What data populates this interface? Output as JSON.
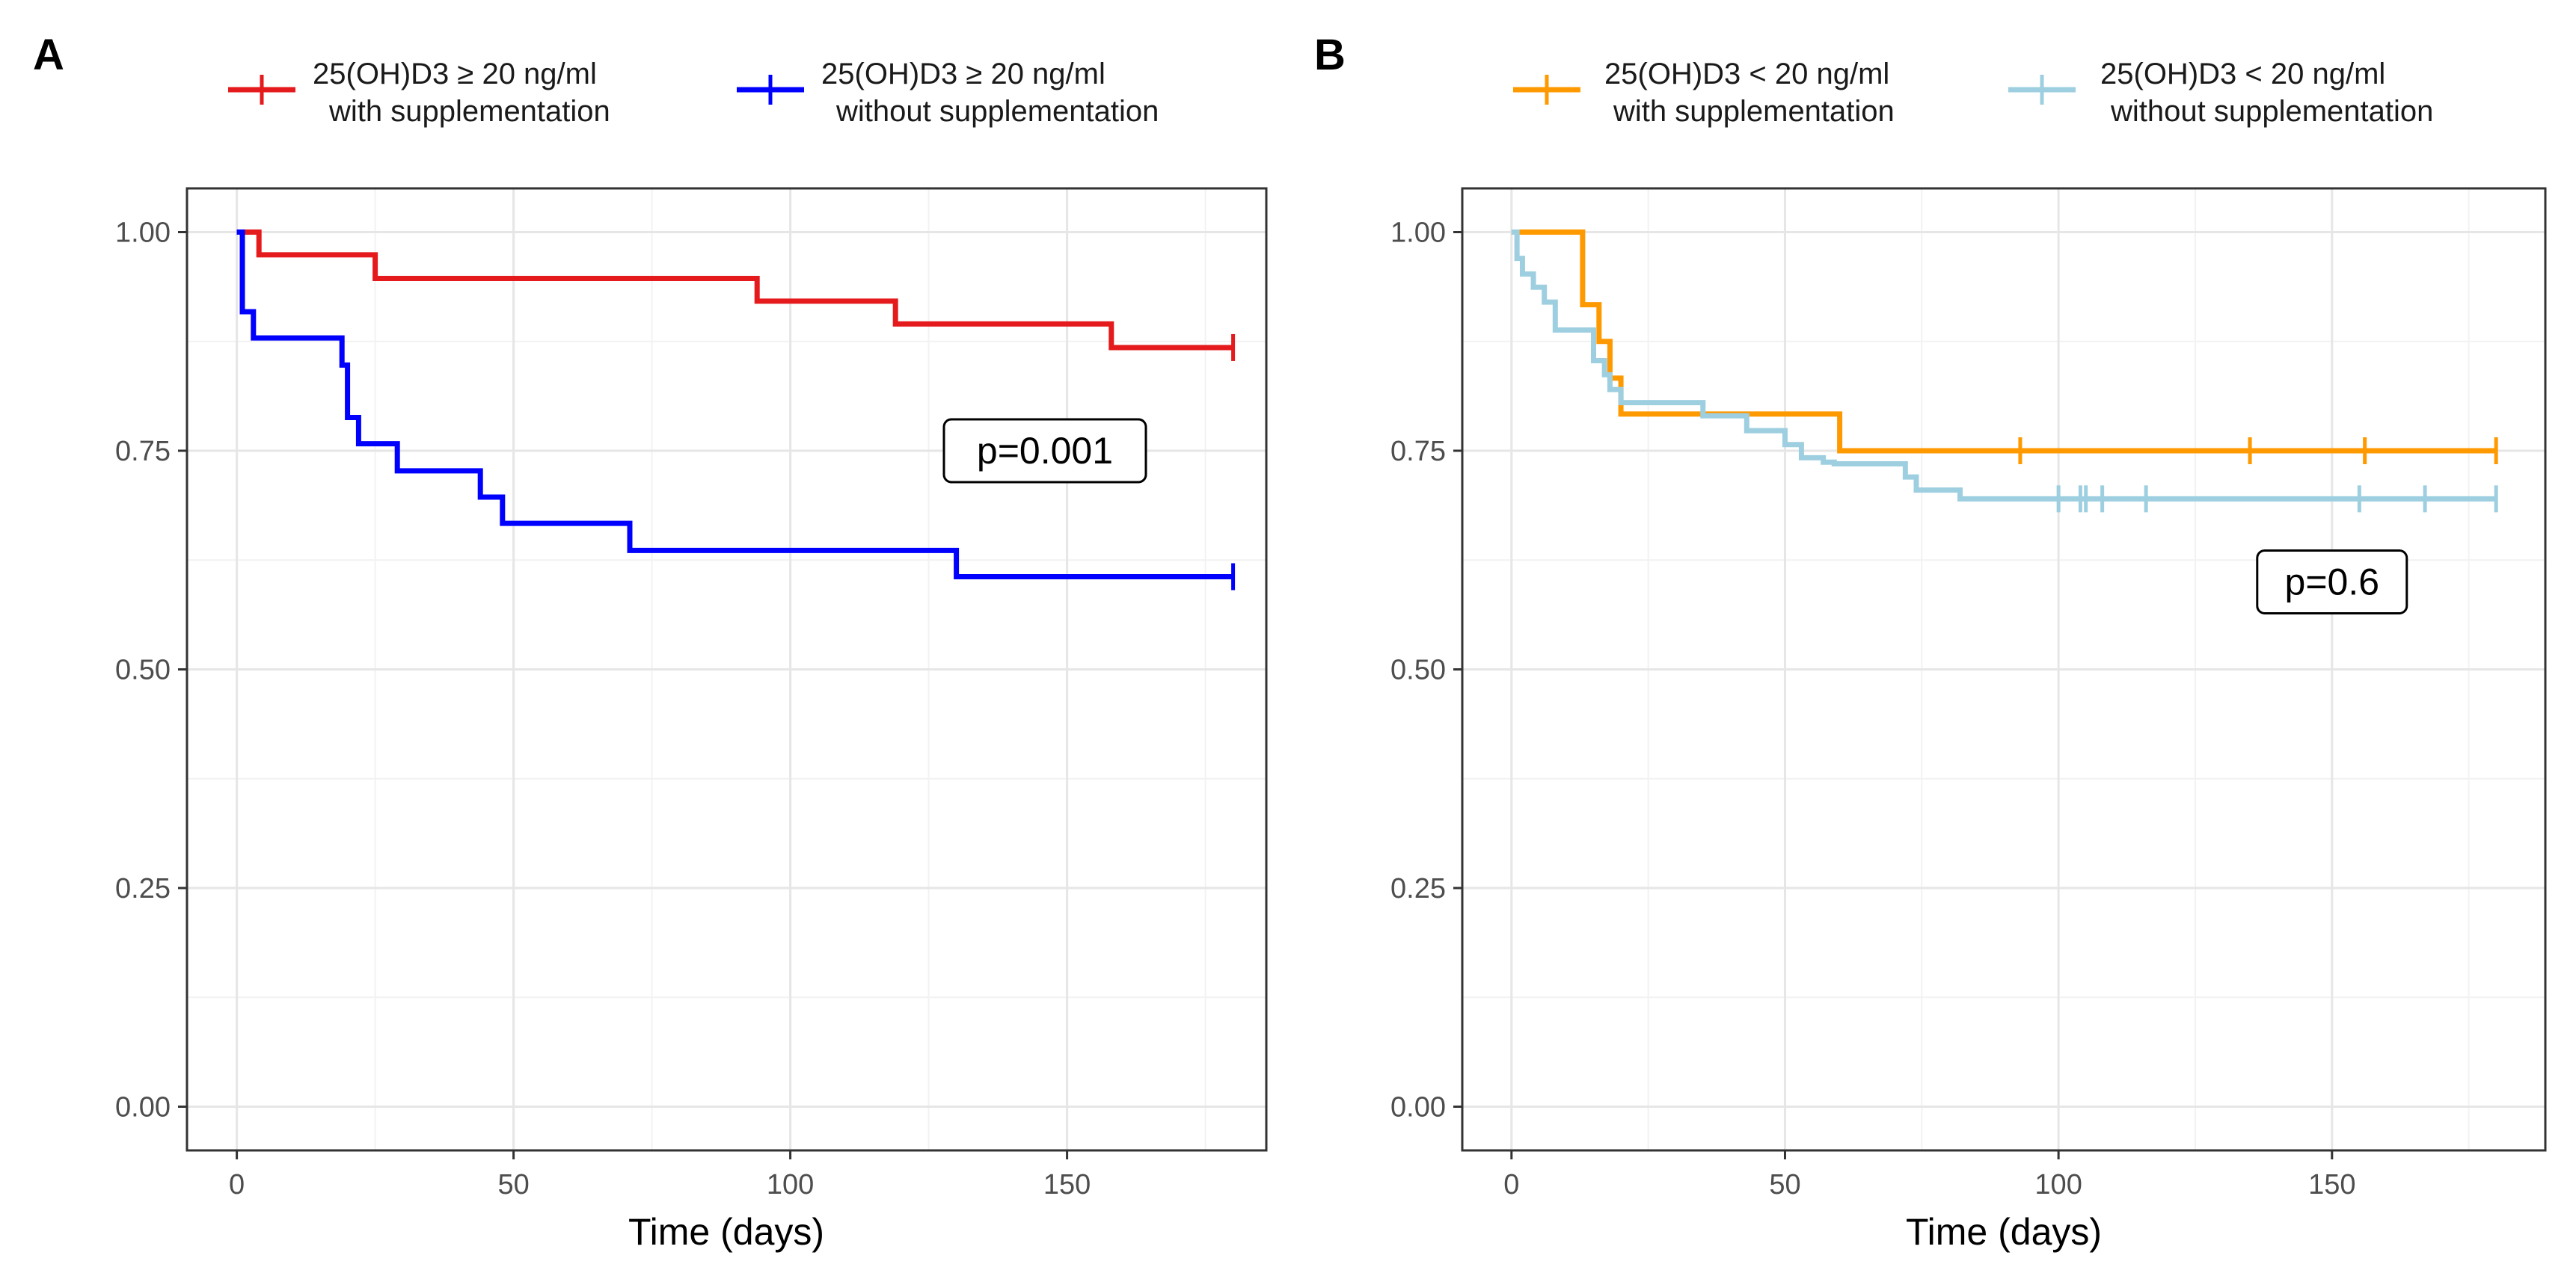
{
  "chart_data": [
    {
      "type": "line",
      "panel_label": "A",
      "xlabel": "Time (days)",
      "ylabel": "",
      "xlim": [
        -9,
        186
      ],
      "ylim": [
        -0.05,
        1.05
      ],
      "x_ticks": [
        0,
        50,
        100,
        150
      ],
      "x_tick_labels": [
        "0",
        "50",
        "100",
        "150"
      ],
      "y_ticks": [
        0,
        0.25,
        0.5,
        0.75,
        1
      ],
      "y_tick_labels": [
        "0.00",
        "0.25",
        "0.50",
        "0.75",
        "1.00"
      ],
      "grid": true,
      "legend_position": "top",
      "p_value": "p=0.001",
      "p_value_at": {
        "x": 146,
        "y": 0.75
      },
      "series": [
        {
          "name_line1": "25(OH)D3 ≥ 20 ng/ml",
          "name_line2": "with supplementation",
          "color": "#e41a1c",
          "x": [
            0,
            2,
            4,
            25,
            94,
            119,
            158,
            180
          ],
          "y": [
            1.0,
            1.0,
            0.974,
            0.947,
            0.921,
            0.895,
            0.868,
            0.868
          ],
          "censor_x": [
            180
          ],
          "censor_y": [
            0.868
          ]
        },
        {
          "name_line1": "25(OH)D3 ≥ 20 ng/ml",
          "name_line2": "without supplementation",
          "color": "#0000ff",
          "x": [
            0,
            1,
            3,
            19,
            20,
            22,
            29,
            44,
            48,
            71,
            130,
            180
          ],
          "y": [
            1.0,
            0.909,
            0.879,
            0.848,
            0.788,
            0.758,
            0.727,
            0.697,
            0.667,
            0.636,
            0.606,
            0.606
          ],
          "censor_x": [
            180
          ],
          "censor_y": [
            0.606
          ]
        }
      ]
    },
    {
      "type": "line",
      "panel_label": "B",
      "xlabel": "Time (days)",
      "ylabel": "",
      "xlim": [
        -9,
        189
      ],
      "ylim": [
        -0.05,
        1.05
      ],
      "x_ticks": [
        0,
        50,
        100,
        150
      ],
      "x_tick_labels": [
        "0",
        "50",
        "100",
        "150"
      ],
      "y_ticks": [
        0,
        0.25,
        0.5,
        0.75,
        1
      ],
      "y_tick_labels": [
        "0.00",
        "0.25",
        "0.50",
        "0.75",
        "1.00"
      ],
      "grid": true,
      "legend_position": "top",
      "p_value": "p=0.6",
      "p_value_at": {
        "x": 150,
        "y": 0.6
      },
      "series": [
        {
          "name_line1": "25(OH)D3 < 20 ng/ml",
          "name_line2": "with supplementation",
          "color": "#ff9900",
          "x": [
            0,
            13,
            16,
            18,
            20,
            60,
            180
          ],
          "y": [
            1.0,
            0.917,
            0.875,
            0.833,
            0.792,
            0.75,
            0.75
          ],
          "censor_x": [
            93,
            135,
            156,
            180
          ],
          "censor_y": [
            0.75,
            0.75,
            0.75,
            0.75
          ]
        },
        {
          "name_line1": "25(OH)D3 < 20 ng/ml",
          "name_line2": "without supplementation",
          "color": "#9ecfe0",
          "x": [
            0,
            1,
            2,
            4,
            6,
            8,
            15,
            17,
            18,
            20,
            35,
            43,
            50,
            53,
            57,
            59,
            66,
            72,
            74,
            82,
            180
          ],
          "y": [
            1.0,
            0.97,
            0.952,
            0.937,
            0.92,
            0.888,
            0.853,
            0.837,
            0.82,
            0.805,
            0.79,
            0.773,
            0.757,
            0.742,
            0.737,
            0.735,
            0.735,
            0.72,
            0.705,
            0.695,
            0.695
          ],
          "censor_x": [
            100,
            104,
            105,
            108,
            116,
            155,
            167,
            180
          ],
          "censor_y": [
            0.695,
            0.695,
            0.695,
            0.695,
            0.695,
            0.695,
            0.695,
            0.695
          ]
        }
      ]
    }
  ]
}
